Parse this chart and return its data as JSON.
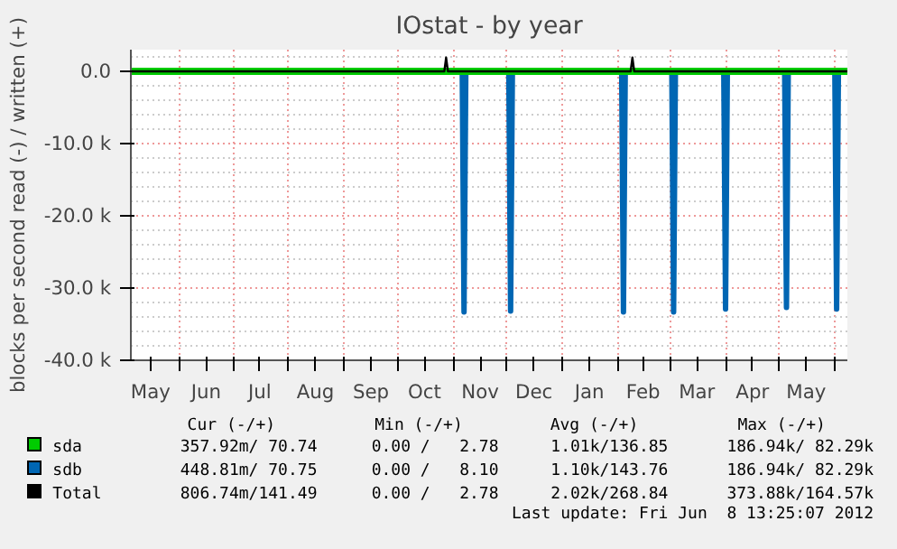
{
  "chart_data": {
    "type": "line",
    "title": "IOstat - by year",
    "ylabel": "blocks per second read (-) / written (+)",
    "series": [
      {
        "name": "sda",
        "color": "#00cc00",
        "x": [
          "2011-05-05",
          "2011-10-27",
          "2012-02-08",
          "2012-06-08"
        ],
        "values": [
          0,
          0,
          0,
          0
        ]
      },
      {
        "name": "sdb",
        "color": "#0066b3",
        "x": [
          "2011-05-05",
          "2011-11-06",
          "2011-11-07",
          "2011-11-08",
          "2011-12-02",
          "2011-12-03",
          "2011-12-04",
          "2012-02-03",
          "2012-02-04",
          "2012-02-05",
          "2012-03-02",
          "2012-03-03",
          "2012-03-04",
          "2012-03-31",
          "2012-04-01",
          "2012-04-02",
          "2012-05-04",
          "2012-05-05",
          "2012-05-06",
          "2012-06-01",
          "2012-06-02",
          "2012-06-03",
          "2012-06-08"
        ],
        "values": [
          0,
          0,
          -33300,
          0,
          0,
          -33200,
          0,
          0,
          -33300,
          0,
          0,
          -33300,
          0,
          0,
          -32900,
          0,
          0,
          -32700,
          0,
          0,
          -32900,
          0,
          0
        ]
      },
      {
        "name": "Total",
        "color": "#000000",
        "x": [
          "2011-05-05",
          "2011-10-27",
          "2011-10-28",
          "2011-10-29",
          "2012-02-08",
          "2012-02-09",
          "2012-02-10",
          "2012-06-08"
        ],
        "values": [
          0,
          0,
          1900,
          0,
          0,
          1900,
          0,
          0
        ]
      }
    ],
    "xlim": [
      "2011-05-05",
      "2012-06-08"
    ],
    "xticks": [
      {
        "value": "2011-05-16",
        "label": "May"
      },
      {
        "value": "2011-06-01",
        "label": null
      },
      {
        "value": "2011-06-16",
        "label": "Jun"
      },
      {
        "value": "2011-07-01",
        "label": null
      },
      {
        "value": "2011-07-16",
        "label": "Jul"
      },
      {
        "value": "2011-08-01",
        "label": null
      },
      {
        "value": "2011-08-16",
        "label": "Aug"
      },
      {
        "value": "2011-09-01",
        "label": null
      },
      {
        "value": "2011-09-16",
        "label": "Sep"
      },
      {
        "value": "2011-10-01",
        "label": null
      },
      {
        "value": "2011-10-16",
        "label": "Oct"
      },
      {
        "value": "2011-11-01",
        "label": null
      },
      {
        "value": "2011-11-16",
        "label": "Nov"
      },
      {
        "value": "2011-12-01",
        "label": null
      },
      {
        "value": "2011-12-16",
        "label": "Dec"
      },
      {
        "value": "2012-01-01",
        "label": null
      },
      {
        "value": "2012-01-16",
        "label": "Jan"
      },
      {
        "value": "2012-02-01",
        "label": null
      },
      {
        "value": "2012-02-15",
        "label": "Feb"
      },
      {
        "value": "2012-03-01",
        "label": null
      },
      {
        "value": "2012-03-16",
        "label": "Mar"
      },
      {
        "value": "2012-04-01",
        "label": null
      },
      {
        "value": "2012-04-16",
        "label": "Apr"
      },
      {
        "value": "2012-05-01",
        "label": null
      },
      {
        "value": "2012-05-16",
        "label": "May"
      },
      {
        "value": "2012-06-01",
        "label": null
      }
    ],
    "ylim": [
      -40000,
      3000
    ],
    "yticks": [
      {
        "value": -40000,
        "label": "-40.0 k"
      },
      {
        "value": -30000,
        "label": "-30.0 k"
      },
      {
        "value": -20000,
        "label": "-20.0 k"
      },
      {
        "value": -10000,
        "label": "-10.0 k"
      },
      {
        "value": 0,
        "label": "0.0"
      }
    ],
    "grid": true,
    "legend": "bottom",
    "line_style": "solid",
    "marker": "none",
    "annotations": [
      "Cur (-/+)",
      "Min (-/+)",
      "Avg (-/+)",
      "Max (-/+)",
      "357.92m/ 70.74",
      "0.00 /   2.78",
      "1.01k/136.85",
      "186.94k/ 82.29k",
      "448.81m/ 70.75",
      "0.00 /   8.10",
      "1.10k/143.76",
      "186.94k/ 82.29k",
      "806.74m/141.49",
      "0.00 /   2.78",
      "2.02k/268.84",
      "373.88k/164.57k",
      "Last update: Fri Jun  8 13:25:07 2012"
    ]
  }
}
